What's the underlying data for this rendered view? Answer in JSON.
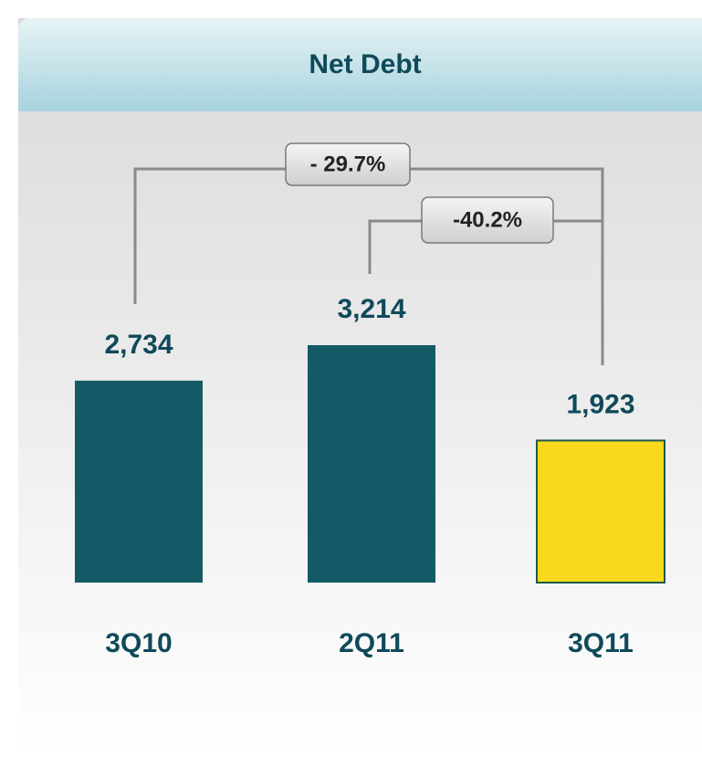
{
  "chart_data": {
    "type": "bar",
    "title": "Net Debt",
    "categories": [
      "3Q10",
      "2Q11",
      "3Q11"
    ],
    "values": [
      2734,
      3214,
      1923
    ],
    "value_labels": [
      "2,734",
      "3,214",
      "1,923"
    ],
    "colors": [
      "#145a66",
      "#145a66",
      "#f9d91e"
    ],
    "annotations": [
      {
        "text": "- 29.7%"
      },
      {
        "text": "-40.2%"
      }
    ]
  }
}
